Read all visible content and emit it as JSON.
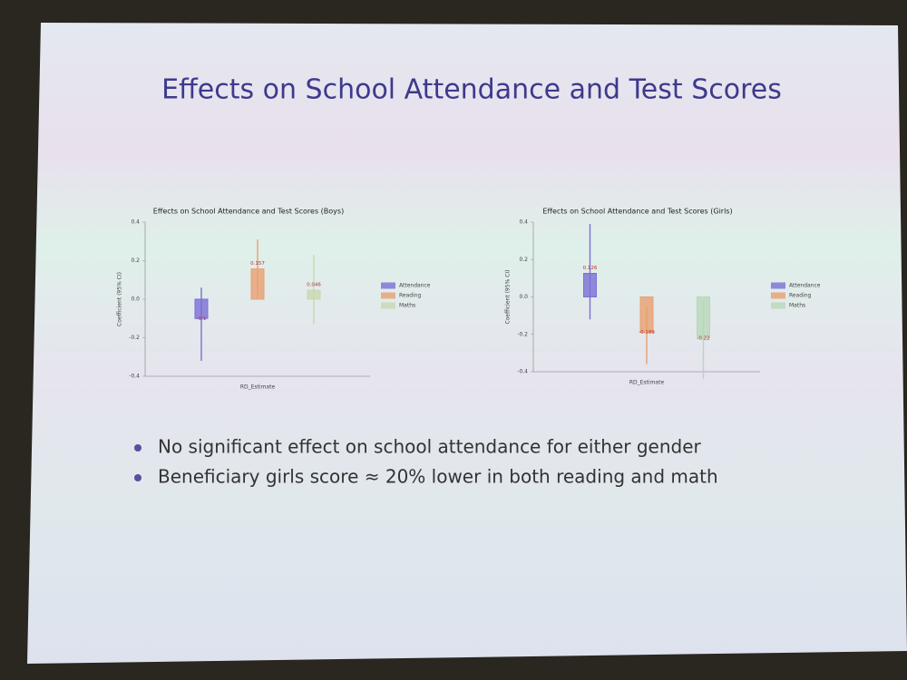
{
  "slide": {
    "title": "Effects on School Attendance and Test Scores",
    "bullets": [
      "No significant effect on school attendance for either gender",
      "Beneficiary girls score ≈ 20% lower in both reading and math"
    ]
  },
  "chart_data": [
    {
      "type": "bar",
      "title": "Effects on School Attendance and Test Scores (Boys)",
      "x_label": "RD_Estimate",
      "y_label": "Coefficient (95% CI)",
      "categories": [
        "RD_Estimate"
      ],
      "ylim": [
        -0.4,
        0.4
      ],
      "yticks": [
        -0.4,
        -0.2,
        {
          "value": 0,
          "label": "0.0"
        },
        0.2,
        0.4
      ],
      "legend": "right",
      "series": [
        {
          "name": "Attendance",
          "color": "#7b6fd6",
          "values": [
            -0.1
          ],
          "ci": [
            [
              -0.32,
              0.06
            ]
          ]
        },
        {
          "name": "Reading",
          "color": "#e8a070",
          "values": [
            0.157
          ],
          "ci": [
            [
              0.01,
              0.31
            ]
          ]
        },
        {
          "name": "Maths",
          "color": "#c8d8b0",
          "values": [
            0.046
          ],
          "ci": [
            [
              -0.13,
              0.23
            ]
          ]
        }
      ]
    },
    {
      "type": "bar",
      "title": "Effects on School Attendance and Test Scores (Girls)",
      "x_label": "RD_Estimate",
      "y_label": "Coefficient (95% CI)",
      "categories": [
        "RD_Estimate"
      ],
      "ylim": [
        -0.4,
        0.4
      ],
      "yticks": [
        -0.4,
        -0.2,
        {
          "value": 0,
          "label": "0.0"
        },
        0.2,
        0.4
      ],
      "legend": "right",
      "series": [
        {
          "name": "Attendance",
          "color": "#7b6fd6",
          "values": [
            0.126
          ],
          "ci": [
            [
              -0.12,
              0.39
            ]
          ]
        },
        {
          "name": "Reading",
          "color": "#e8a070",
          "values": [
            -0.189
          ],
          "ci": [
            [
              -0.36,
              -0.05
            ]
          ]
        },
        {
          "name": "Maths",
          "color": "#b8d8b8",
          "values": [
            -0.22
          ],
          "ci": [
            [
              -0.44,
              -0.02
            ]
          ]
        }
      ]
    }
  ]
}
